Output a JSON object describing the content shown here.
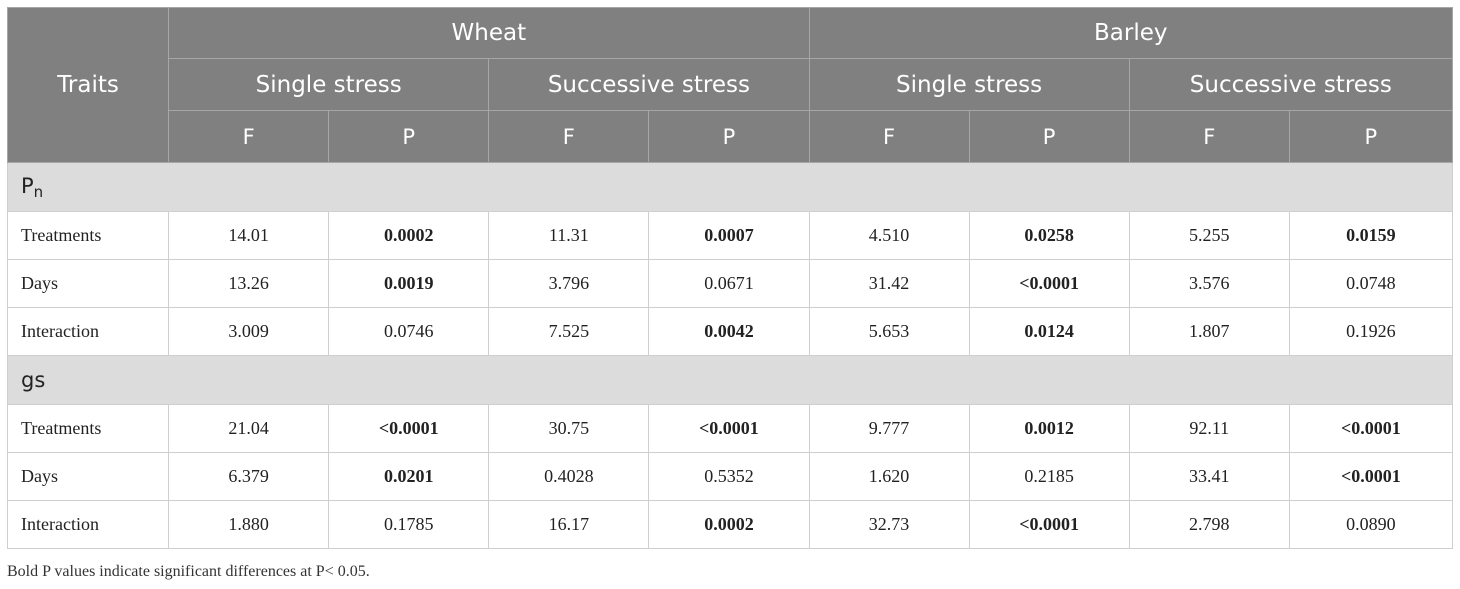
{
  "header": {
    "traits": "Traits",
    "crops": [
      "Wheat",
      "Barley"
    ],
    "stress_types": [
      "Single stress",
      "Successive stress",
      "Single stress",
      "Successive stress"
    ],
    "stats": [
      "F",
      "P",
      "F",
      "P",
      "F",
      "P",
      "F",
      "P"
    ]
  },
  "sections": [
    {
      "name": "P",
      "name_sub": "n",
      "rows": [
        {
          "label": "Treatments",
          "cells": [
            {
              "v": "14.01",
              "bold": false
            },
            {
              "v": "0.0002",
              "bold": true
            },
            {
              "v": "11.31",
              "bold": false
            },
            {
              "v": "0.0007",
              "bold": true
            },
            {
              "v": "4.510",
              "bold": false
            },
            {
              "v": "0.0258",
              "bold": true
            },
            {
              "v": "5.255",
              "bold": false
            },
            {
              "v": "0.0159",
              "bold": true
            }
          ]
        },
        {
          "label": "Days",
          "cells": [
            {
              "v": "13.26",
              "bold": false
            },
            {
              "v": "0.0019",
              "bold": true
            },
            {
              "v": "3.796",
              "bold": false
            },
            {
              "v": "0.0671",
              "bold": false
            },
            {
              "v": "31.42",
              "bold": false
            },
            {
              "v": "<0.0001",
              "bold": true
            },
            {
              "v": "3.576",
              "bold": false
            },
            {
              "v": "0.0748",
              "bold": false
            }
          ]
        },
        {
          "label": "Interaction",
          "cells": [
            {
              "v": "3.009",
              "bold": false
            },
            {
              "v": "0.0746",
              "bold": false
            },
            {
              "v": "7.525",
              "bold": false
            },
            {
              "v": "0.0042",
              "bold": true
            },
            {
              "v": "5.653",
              "bold": false
            },
            {
              "v": "0.0124",
              "bold": true
            },
            {
              "v": "1.807",
              "bold": false
            },
            {
              "v": "0.1926",
              "bold": false
            }
          ]
        }
      ]
    },
    {
      "name": "gs",
      "name_sub": "",
      "rows": [
        {
          "label": "Treatments",
          "cells": [
            {
              "v": "21.04",
              "bold": false
            },
            {
              "v": "<0.0001",
              "bold": true
            },
            {
              "v": "30.75",
              "bold": false
            },
            {
              "v": "<0.0001",
              "bold": true
            },
            {
              "v": "9.777",
              "bold": false
            },
            {
              "v": "0.0012",
              "bold": true
            },
            {
              "v": "92.11",
              "bold": false
            },
            {
              "v": "<0.0001",
              "bold": true
            }
          ]
        },
        {
          "label": "Days",
          "cells": [
            {
              "v": "6.379",
              "bold": false
            },
            {
              "v": "0.0201",
              "bold": true
            },
            {
              "v": "0.4028",
              "bold": false
            },
            {
              "v": "0.5352",
              "bold": false
            },
            {
              "v": "1.620",
              "bold": false
            },
            {
              "v": "0.2185",
              "bold": false
            },
            {
              "v": "33.41",
              "bold": false
            },
            {
              "v": "<0.0001",
              "bold": true
            }
          ]
        },
        {
          "label": "Interaction",
          "cells": [
            {
              "v": "1.880",
              "bold": false
            },
            {
              "v": "0.1785",
              "bold": false
            },
            {
              "v": "16.17",
              "bold": false
            },
            {
              "v": "0.0002",
              "bold": true
            },
            {
              "v": "32.73",
              "bold": false
            },
            {
              "v": "<0.0001",
              "bold": true
            },
            {
              "v": "2.798",
              "bold": false
            },
            {
              "v": "0.0890",
              "bold": false
            }
          ]
        }
      ]
    }
  ],
  "footnote": "Bold P values indicate significant differences at P< 0.05."
}
